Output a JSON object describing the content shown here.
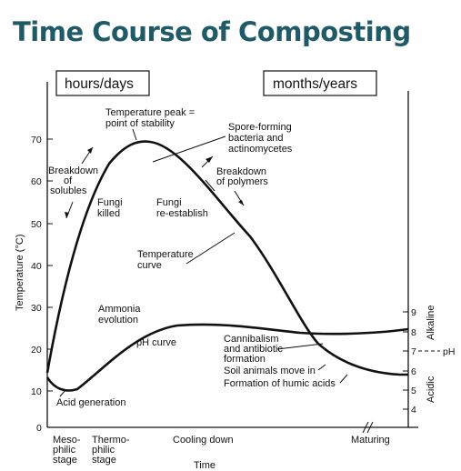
{
  "title": "Time Course of Composting",
  "header_boxes": {
    "left": "hours/days",
    "right": "months/years"
  },
  "axes": {
    "y_left_label": "Temperature (°C)",
    "y_left_ticks": [
      "0",
      "10",
      "20",
      "30",
      "40",
      "50",
      "60",
      "70"
    ],
    "y_right_ticks": [
      "4",
      "5",
      "6",
      "7",
      "8",
      "9"
    ],
    "y_right_alkaline": "Alkaline",
    "y_right_acidic": "Acidic",
    "y_right_ph": "pH",
    "x_label": "Time"
  },
  "stages": {
    "mesophilic": [
      "Meso-",
      "philic",
      "stage"
    ],
    "thermophilic": [
      "Thermo-",
      "philic",
      "stage"
    ],
    "cooling": "Cooling down",
    "maturing": "Maturing"
  },
  "annotations": {
    "temp_peak": [
      "Temperature peak =",
      "point of stability"
    ],
    "spore_forming": [
      "Spore-forming",
      "bacteria and",
      "actinomycetes"
    ],
    "breakdown_solubles": [
      "Breakdown",
      "of",
      "solubles"
    ],
    "breakdown_polymers": [
      "Breakdown",
      "of polymers"
    ],
    "fungi_killed": [
      "Fungi",
      "killed"
    ],
    "fungi_reestablish": [
      "Fungi",
      "re-establish"
    ],
    "temperature_curve": [
      "Temperature",
      "curve"
    ],
    "ammonia": [
      "Ammonia",
      "evolution"
    ],
    "ph_curve": "pH curve",
    "cannibalism": [
      "Cannibalism",
      "and antibiotic",
      "formation"
    ],
    "soil_animals": "Soil animals move in",
    "humic_acids": "Formation of humic acids",
    "acid_generation": "Acid generation"
  }
}
